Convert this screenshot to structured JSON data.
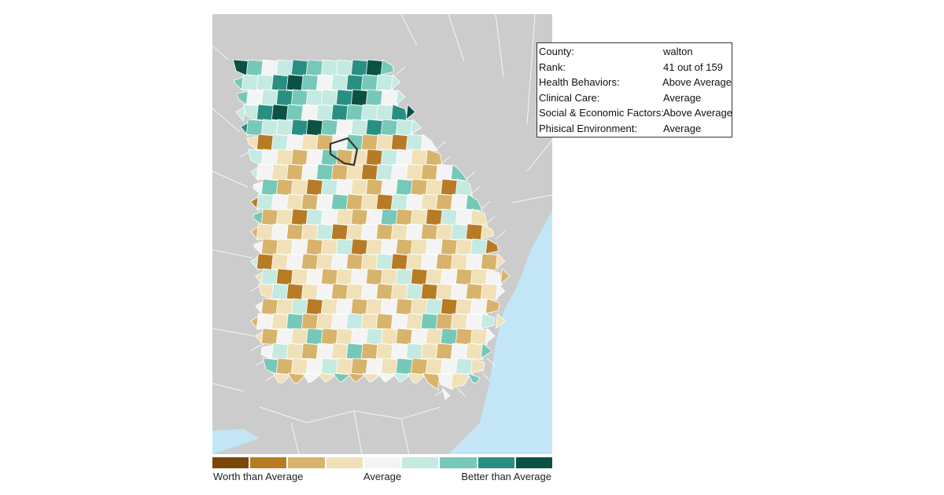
{
  "legend": {
    "colors": [
      "#7a4706",
      "#b77a25",
      "#d8b36b",
      "#f1e1b8",
      "#f4f4f4",
      "#c4eae2",
      "#76c8b8",
      "#2a8f83",
      "#0b5244"
    ],
    "worse_label": "Worth than Average",
    "average_label": "Average",
    "better_label": "Better than Average"
  },
  "map": {
    "land_color": "#cccccc",
    "water_color": "#c3e6f6",
    "border_color": "#ffffff",
    "selected_county": "walton"
  },
  "info": {
    "rows": [
      {
        "label": "County:",
        "value": "walton"
      },
      {
        "label": "Rank:",
        "value": "41 out of 159"
      },
      {
        "label": "Health Behaviors:",
        "value": "Above Average"
      },
      {
        "label": "Clinical Care:",
        "value": "Average"
      },
      {
        "label": "Social & Economic Factors:",
        "value": "Above Average"
      },
      {
        "label": "Phisical Environment:",
        "value": "Average"
      }
    ]
  }
}
